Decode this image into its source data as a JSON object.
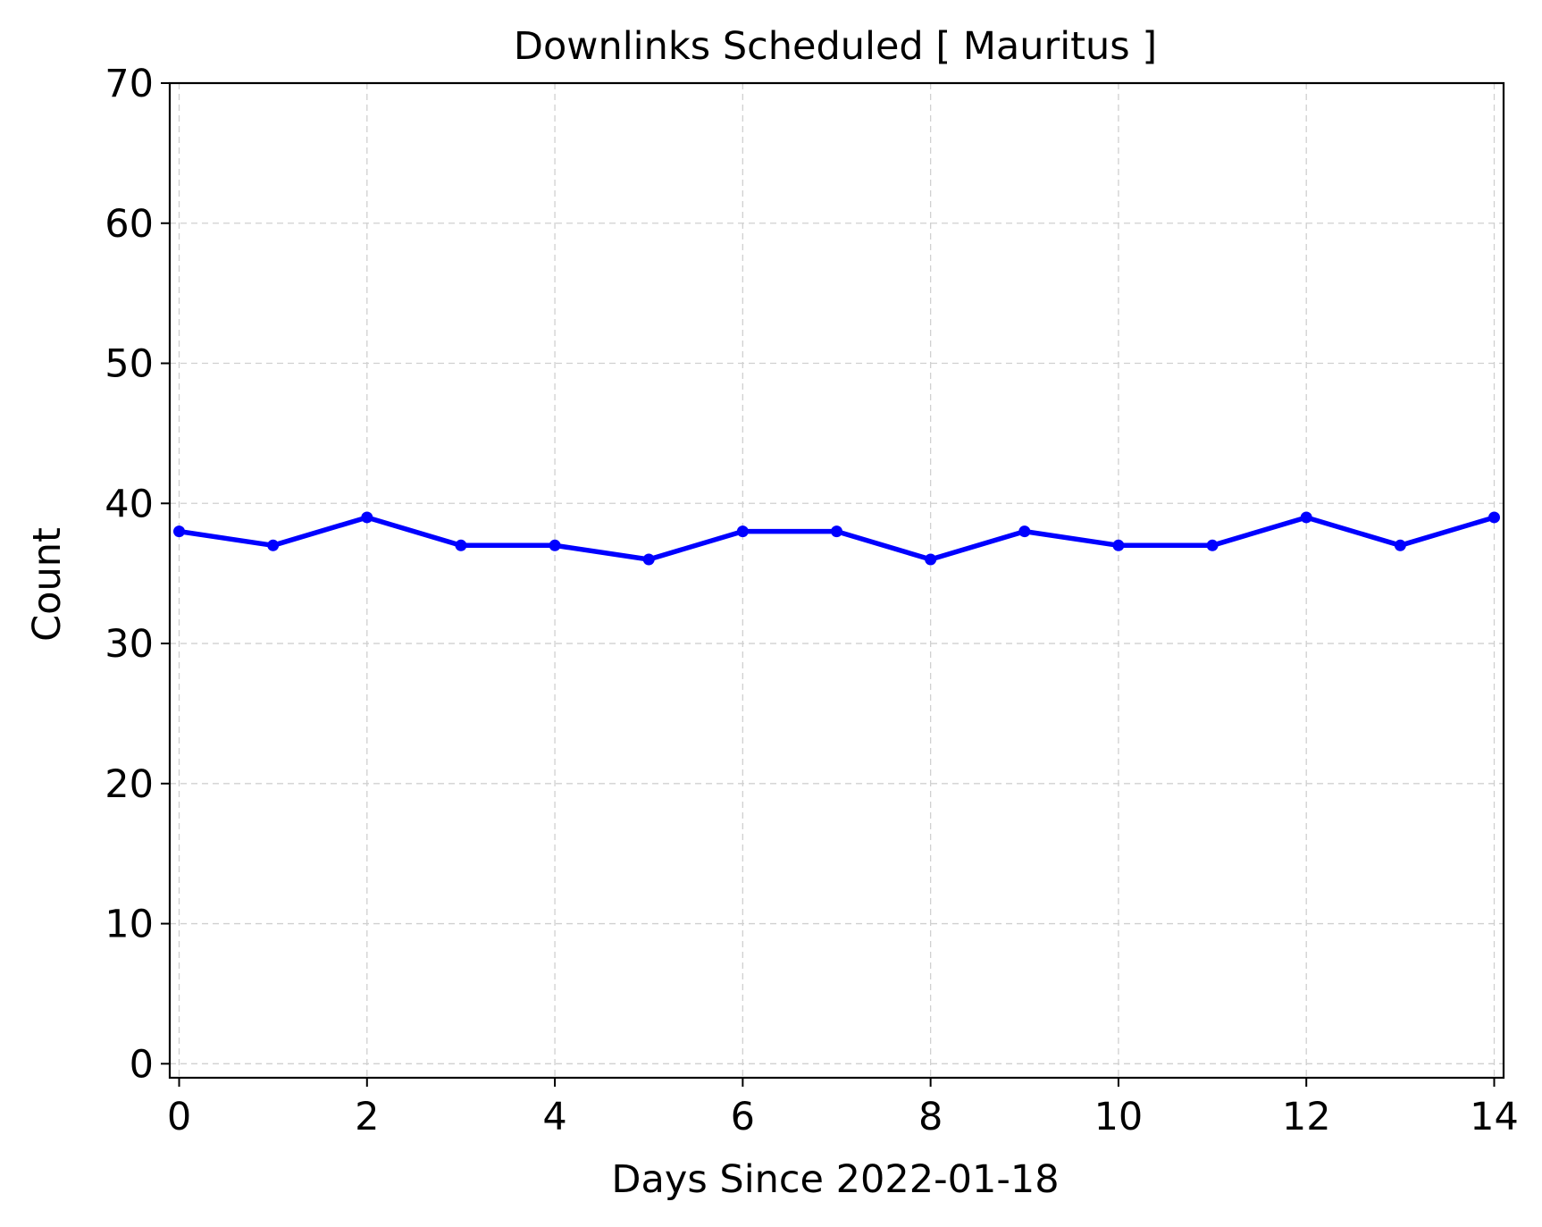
{
  "chart_data": {
    "type": "line",
    "title": "Downlinks Scheduled [ Mauritus ]",
    "xlabel": "Days Since 2022-01-18",
    "ylabel": "Count",
    "xlim": [
      -0.1,
      14.1
    ],
    "ylim": [
      -1,
      70
    ],
    "xticks": [
      0,
      2,
      4,
      6,
      8,
      10,
      12,
      14
    ],
    "yticks": [
      0,
      10,
      20,
      30,
      40,
      50,
      60,
      70
    ],
    "grid": true,
    "series": [
      {
        "x": [
          0,
          1,
          2,
          3,
          4,
          5,
          6,
          7,
          8,
          9,
          10,
          11,
          12,
          13,
          14
        ],
        "values": [
          38,
          37,
          39,
          37,
          37,
          36,
          38,
          38,
          36,
          38,
          37,
          37,
          39,
          37,
          39
        ],
        "color": "#0000ff",
        "marker": "circle"
      }
    ]
  }
}
